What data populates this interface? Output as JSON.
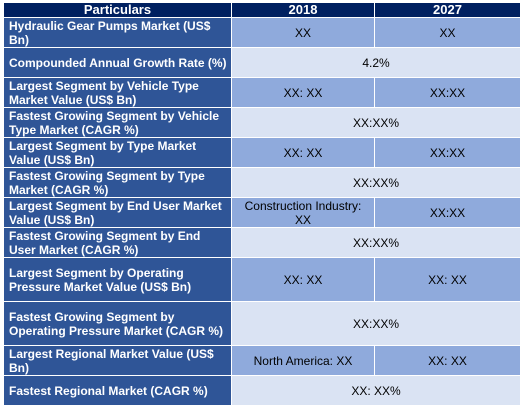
{
  "header": {
    "col1": "Particulars",
    "col2": "2018",
    "col3": "2027"
  },
  "rows": [
    {
      "label": "Hydraulic Gear Pumps Market (US$ Bn)",
      "v2018": "XX",
      "v2027": "XX"
    },
    {
      "label": "Compounded Annual Growth Rate (%)",
      "merged": "4.2%"
    },
    {
      "label": "Largest Segment by Vehicle Type Market Value (US$ Bn)",
      "v2018": "XX: XX",
      "v2027": "XX:XX"
    },
    {
      "label": "Fastest Growing Segment by Vehicle Type Market (CAGR %)",
      "merged": "XX:XX%"
    },
    {
      "label": "Largest Segment by Type Market Value (US$ Bn)",
      "v2018": "XX: XX",
      "v2027": "XX:XX"
    },
    {
      "label": "Fastest Growing Segment by Type Market (CAGR %)",
      "merged": "XX:XX%"
    },
    {
      "label": "Largest Segment by End User Market Value (US$ Bn)",
      "v2018": "Construction Industry: XX",
      "v2027": "XX:XX"
    },
    {
      "label": "Fastest Growing Segment by End User Market (CAGR %)",
      "merged": "XX:XX%"
    },
    {
      "label": "Largest Segment by Operating Pressure Market Value (US$ Bn)",
      "v2018": "XX: XX",
      "v2027": "XX: XX"
    },
    {
      "label": "Fastest Growing Segment by Operating Pressure Market (CAGR %)",
      "merged": "XX:XX%"
    },
    {
      "label": "Largest Regional Market Value (US$ Bn)",
      "v2018": "North America: XX",
      "v2027": "XX: XX"
    },
    {
      "label": "Fastest Regional Market (CAGR %)",
      "merged": "XX: XX%"
    }
  ]
}
